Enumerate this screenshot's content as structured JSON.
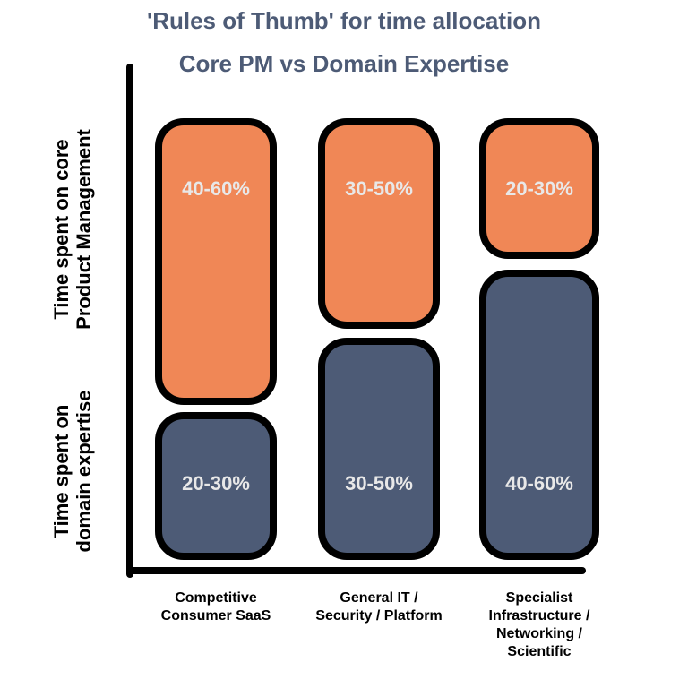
{
  "chart_data": {
    "type": "bar",
    "title": "'Rules of Thumb' for time allocation",
    "subtitle": "Core PM vs Domain Expertise",
    "ylabel_top": [
      "Time spent on core",
      "Product Management"
    ],
    "ylabel_bottom": [
      "Time spent on",
      "domain expertise"
    ],
    "categories": [
      [
        "Competitive",
        "Consumer SaaS"
      ],
      [
        "General IT /",
        "Security / Platform"
      ],
      [
        "Specialist",
        "Infrastructure /",
        "Networking /",
        "Scientific"
      ]
    ],
    "series": [
      {
        "name": "core PM",
        "color": "#f08756",
        "values": [
          [
            40,
            60
          ],
          [
            30,
            50
          ],
          [
            20,
            30
          ]
        ],
        "labels": [
          "40-60%",
          "30-50%",
          "20-30%"
        ]
      },
      {
        "name": "domain expertise",
        "color": "#4d5b76",
        "values": [
          [
            20,
            30
          ],
          [
            30,
            50
          ],
          [
            40,
            60
          ]
        ],
        "labels": [
          "20-30%",
          "30-50%",
          "40-60%"
        ]
      }
    ],
    "colors": {
      "title": "#4d5b76",
      "label_text": "#e8e8e8",
      "outline": "#000000"
    }
  }
}
